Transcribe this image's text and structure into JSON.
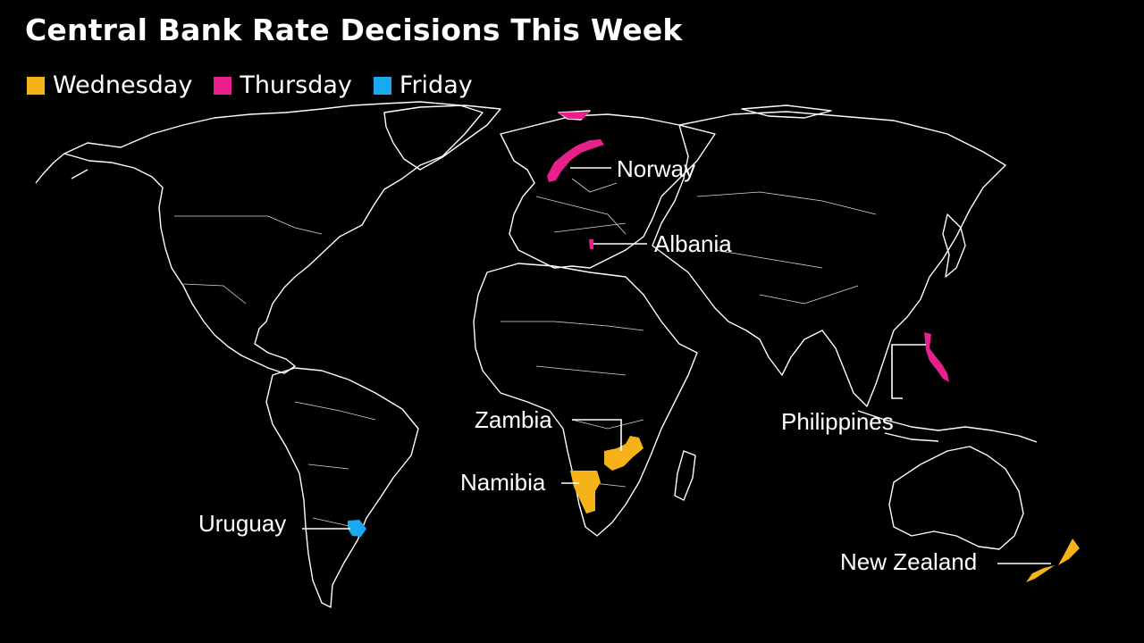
{
  "title": "Central Bank Rate Decisions This Week",
  "colors": {
    "wednesday": "#f5b319",
    "thursday": "#e8208c",
    "friday": "#18a9f0",
    "background": "#000000",
    "outline": "#ffffff"
  },
  "legend": [
    {
      "label": "Wednesday",
      "color": "#f5b319"
    },
    {
      "label": "Thursday",
      "color": "#e8208c"
    },
    {
      "label": "Friday",
      "color": "#18a9f0"
    }
  ],
  "countries": {
    "norway": {
      "label": "Norway",
      "day": "Thursday"
    },
    "albania": {
      "label": "Albania",
      "day": "Thursday"
    },
    "philippines": {
      "label": "Philippines",
      "day": "Thursday"
    },
    "zambia": {
      "label": "Zambia",
      "day": "Wednesday"
    },
    "namibia": {
      "label": "Namibia",
      "day": "Wednesday"
    },
    "uruguay": {
      "label": "Uruguay",
      "day": "Friday"
    },
    "new_zealand": {
      "label": "New Zealand",
      "day": "Wednesday"
    }
  }
}
